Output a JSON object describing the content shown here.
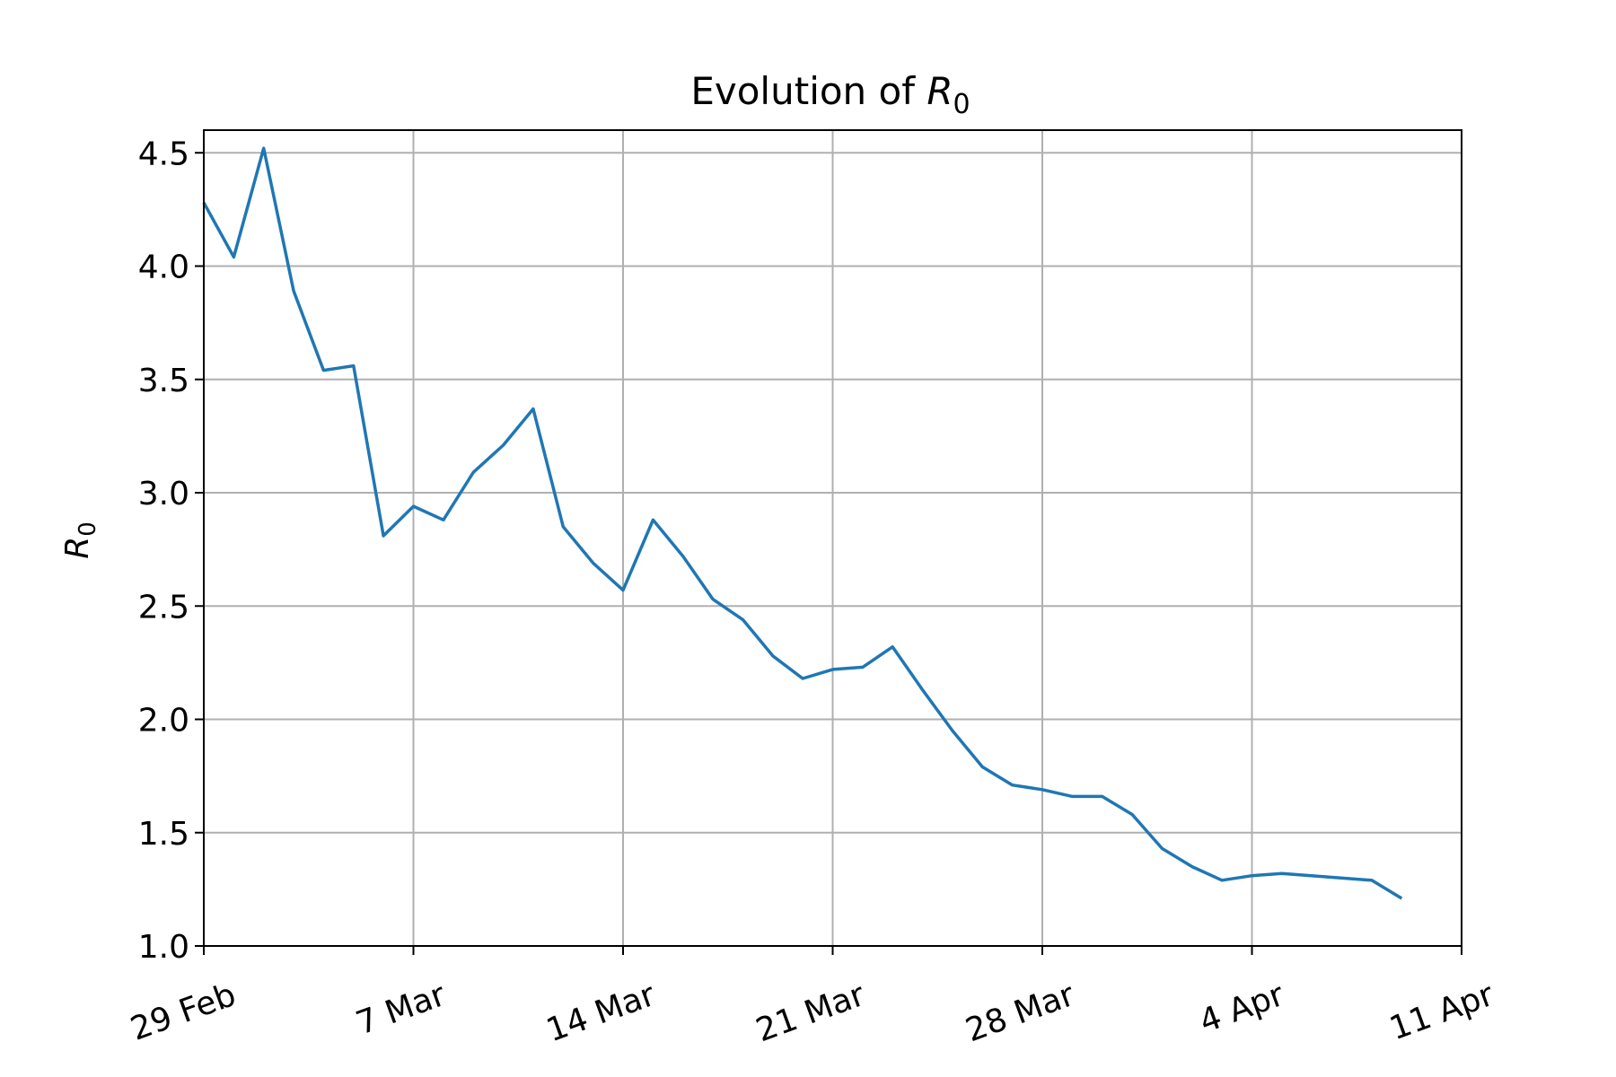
{
  "chart_data": {
    "type": "line",
    "title": "Evolution of R₀",
    "title_prefix": "Evolution of ",
    "title_var": "R",
    "title_sub": "0",
    "xlabel": "",
    "ylabel": "R₀",
    "ylabel_var": "R",
    "ylabel_sub": "0",
    "grid": true,
    "line_color": "#1f77b4",
    "ylim": [
      1.0,
      4.6
    ],
    "xlim": [
      "2020-02-29",
      "2020-04-11"
    ],
    "yticks": [
      {
        "value": 1.0,
        "label": "1.0"
      },
      {
        "value": 1.5,
        "label": "1.5"
      },
      {
        "value": 2.0,
        "label": "2.0"
      },
      {
        "value": 2.5,
        "label": "2.5"
      },
      {
        "value": 3.0,
        "label": "3.0"
      },
      {
        "value": 3.5,
        "label": "3.5"
      },
      {
        "value": 4.0,
        "label": "4.0"
      },
      {
        "value": 4.5,
        "label": "4.5"
      }
    ],
    "xticks": [
      {
        "value": "2020-02-29",
        "label": "29 Feb"
      },
      {
        "value": "2020-03-07",
        "label": "7 Mar"
      },
      {
        "value": "2020-03-14",
        "label": "14 Mar"
      },
      {
        "value": "2020-03-21",
        "label": "21 Mar"
      },
      {
        "value": "2020-03-28",
        "label": "28 Mar"
      },
      {
        "value": "2020-04-04",
        "label": "4 Apr"
      },
      {
        "value": "2020-04-11",
        "label": "11 Apr"
      }
    ],
    "series": [
      {
        "x": [
          "2020-02-29",
          "2020-03-01",
          "2020-03-02",
          "2020-03-03",
          "2020-03-04",
          "2020-03-05",
          "2020-03-06",
          "2020-03-07",
          "2020-03-08",
          "2020-03-09",
          "2020-03-10",
          "2020-03-11",
          "2020-03-12",
          "2020-03-13",
          "2020-03-14",
          "2020-03-15",
          "2020-03-16",
          "2020-03-17",
          "2020-03-18",
          "2020-03-19",
          "2020-03-20",
          "2020-03-21",
          "2020-03-22",
          "2020-03-23",
          "2020-03-24",
          "2020-03-25",
          "2020-03-26",
          "2020-03-27",
          "2020-03-28",
          "2020-03-29",
          "2020-03-30",
          "2020-03-31",
          "2020-04-01",
          "2020-04-02",
          "2020-04-03",
          "2020-04-04",
          "2020-04-05",
          "2020-04-08",
          "2020-04-09"
        ],
        "values": [
          4.28,
          4.04,
          4.52,
          3.89,
          3.54,
          3.56,
          2.81,
          2.94,
          2.88,
          3.09,
          3.21,
          3.37,
          2.85,
          2.69,
          2.57,
          2.88,
          2.72,
          2.53,
          2.44,
          2.28,
          2.18,
          2.22,
          2.23,
          2.32,
          2.13,
          1.95,
          1.79,
          1.71,
          1.69,
          1.66,
          1.66,
          1.58,
          1.43,
          1.35,
          1.29,
          1.31,
          1.32,
          1.29,
          1.21
        ]
      }
    ]
  }
}
